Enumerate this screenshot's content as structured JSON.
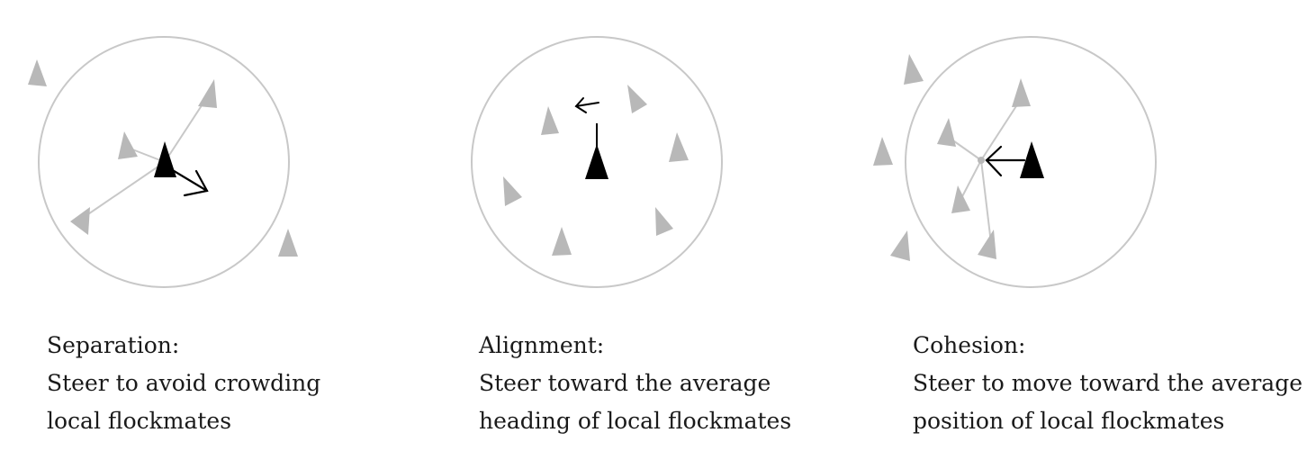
{
  "panels": [
    {
      "id": "separation",
      "title": "Separation:",
      "description_line1": "Steer to avoid crowding",
      "description_line2": "local flockmates"
    },
    {
      "id": "alignment",
      "title": "Alignment:",
      "description_line1": "Steer toward the average",
      "description_line2": "heading of local flockmates"
    },
    {
      "id": "cohesion",
      "title": "Cohesion:",
      "description_line1": "Steer to move toward the average",
      "description_line2": "position of local flockmates"
    }
  ],
  "colors": {
    "neighbor_boid": "#b8b8b8",
    "focus_boid": "#000000",
    "radius_circle": "#c8c8c8",
    "steer_arrow": "#000000",
    "text": "#1a1a1a"
  },
  "icons": {
    "boid": "triangle-icon",
    "steer": "arrow-icon"
  }
}
